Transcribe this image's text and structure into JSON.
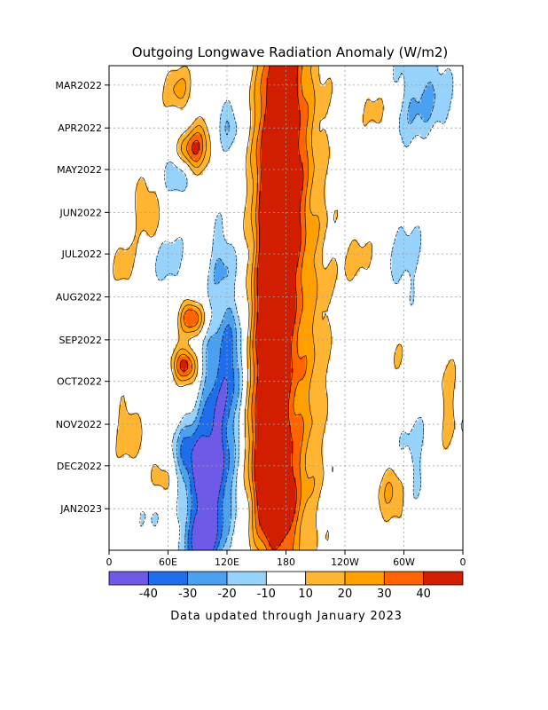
{
  "chart_data": {
    "type": "heatmap",
    "title": "Outgoing Longwave Radiation Anomaly (W/m2)",
    "subtitle": "Data updated through January 2023",
    "x_tick_labels": [
      "0",
      "60E",
      "120E",
      "180",
      "120W",
      "60W",
      "0"
    ],
    "x_ticks_deg_east": [
      0,
      60,
      120,
      180,
      240,
      300,
      360
    ],
    "xlim_deg_east": [
      0,
      360
    ],
    "y_tick_labels": [
      "MAR2022",
      "APR2022",
      "MAY2022",
      "JUN2022",
      "JUL2022",
      "AUG2022",
      "SEP2022",
      "OCT2022",
      "NOV2022",
      "DEC2022",
      "JAN2023"
    ],
    "time_range": [
      "2022-02-15",
      "2023-01-31"
    ],
    "grid": true,
    "colorbar": {
      "position": "bottom",
      "bins": [
        {
          "range": "< -40",
          "color": "#6e5ae6"
        },
        {
          "range": "-40 to -30",
          "color": "#1e6eeb"
        },
        {
          "range": "-30 to -20",
          "color": "#4ba0f0"
        },
        {
          "range": "-20 to -10",
          "color": "#96d2fa"
        },
        {
          "range": "-10 to 10",
          "color": "#ffffff"
        },
        {
          "range": "10 to 20",
          "color": "#ffb432"
        },
        {
          "range": "20 to 30",
          "color": "#ffa000"
        },
        {
          "range": "30 to 40",
          "color": "#ff6400"
        },
        {
          "range": "> 40",
          "color": "#d21e00"
        }
      ],
      "tick_labels": [
        "-40",
        "-30",
        "-20",
        "-10",
        "10",
        "20",
        "30",
        "40"
      ]
    },
    "features": [
      {
        "name": "dipole Indian Ocean / Maritime Continent negative",
        "lon_range": [
          60,
          130
        ],
        "month_range": [
          "2022-06",
          "2023-01"
        ],
        "sign": "negative",
        "peak": -40
      },
      {
        "name": "date-line positive band",
        "lon_range": [
          150,
          200
        ],
        "month_range": [
          "2022-02",
          "2023-01"
        ],
        "sign": "positive",
        "peak": 40
      },
      {
        "name": "Indian Ocean positive cells",
        "lon_range": [
          70,
          95
        ],
        "month_range": [
          "2022-03",
          "2022-09"
        ],
        "sign": "positive",
        "peak": 40
      },
      {
        "name": "eastern Pacific weak negative",
        "lon_range": [
          290,
          350
        ],
        "month_range": [
          "2022-02",
          "2022-07"
        ],
        "sign": "negative",
        "peak": -20
      },
      {
        "name": "Atlantic positive patches",
        "lon_range": [
          280,
          340
        ],
        "month_range": [
          "2022-10",
          "2023-01"
        ],
        "sign": "positive",
        "peak": 30
      }
    ]
  },
  "colors": {
    "grid": "#a0a0a0",
    "axis": "#000000",
    "contour": "#000000"
  }
}
